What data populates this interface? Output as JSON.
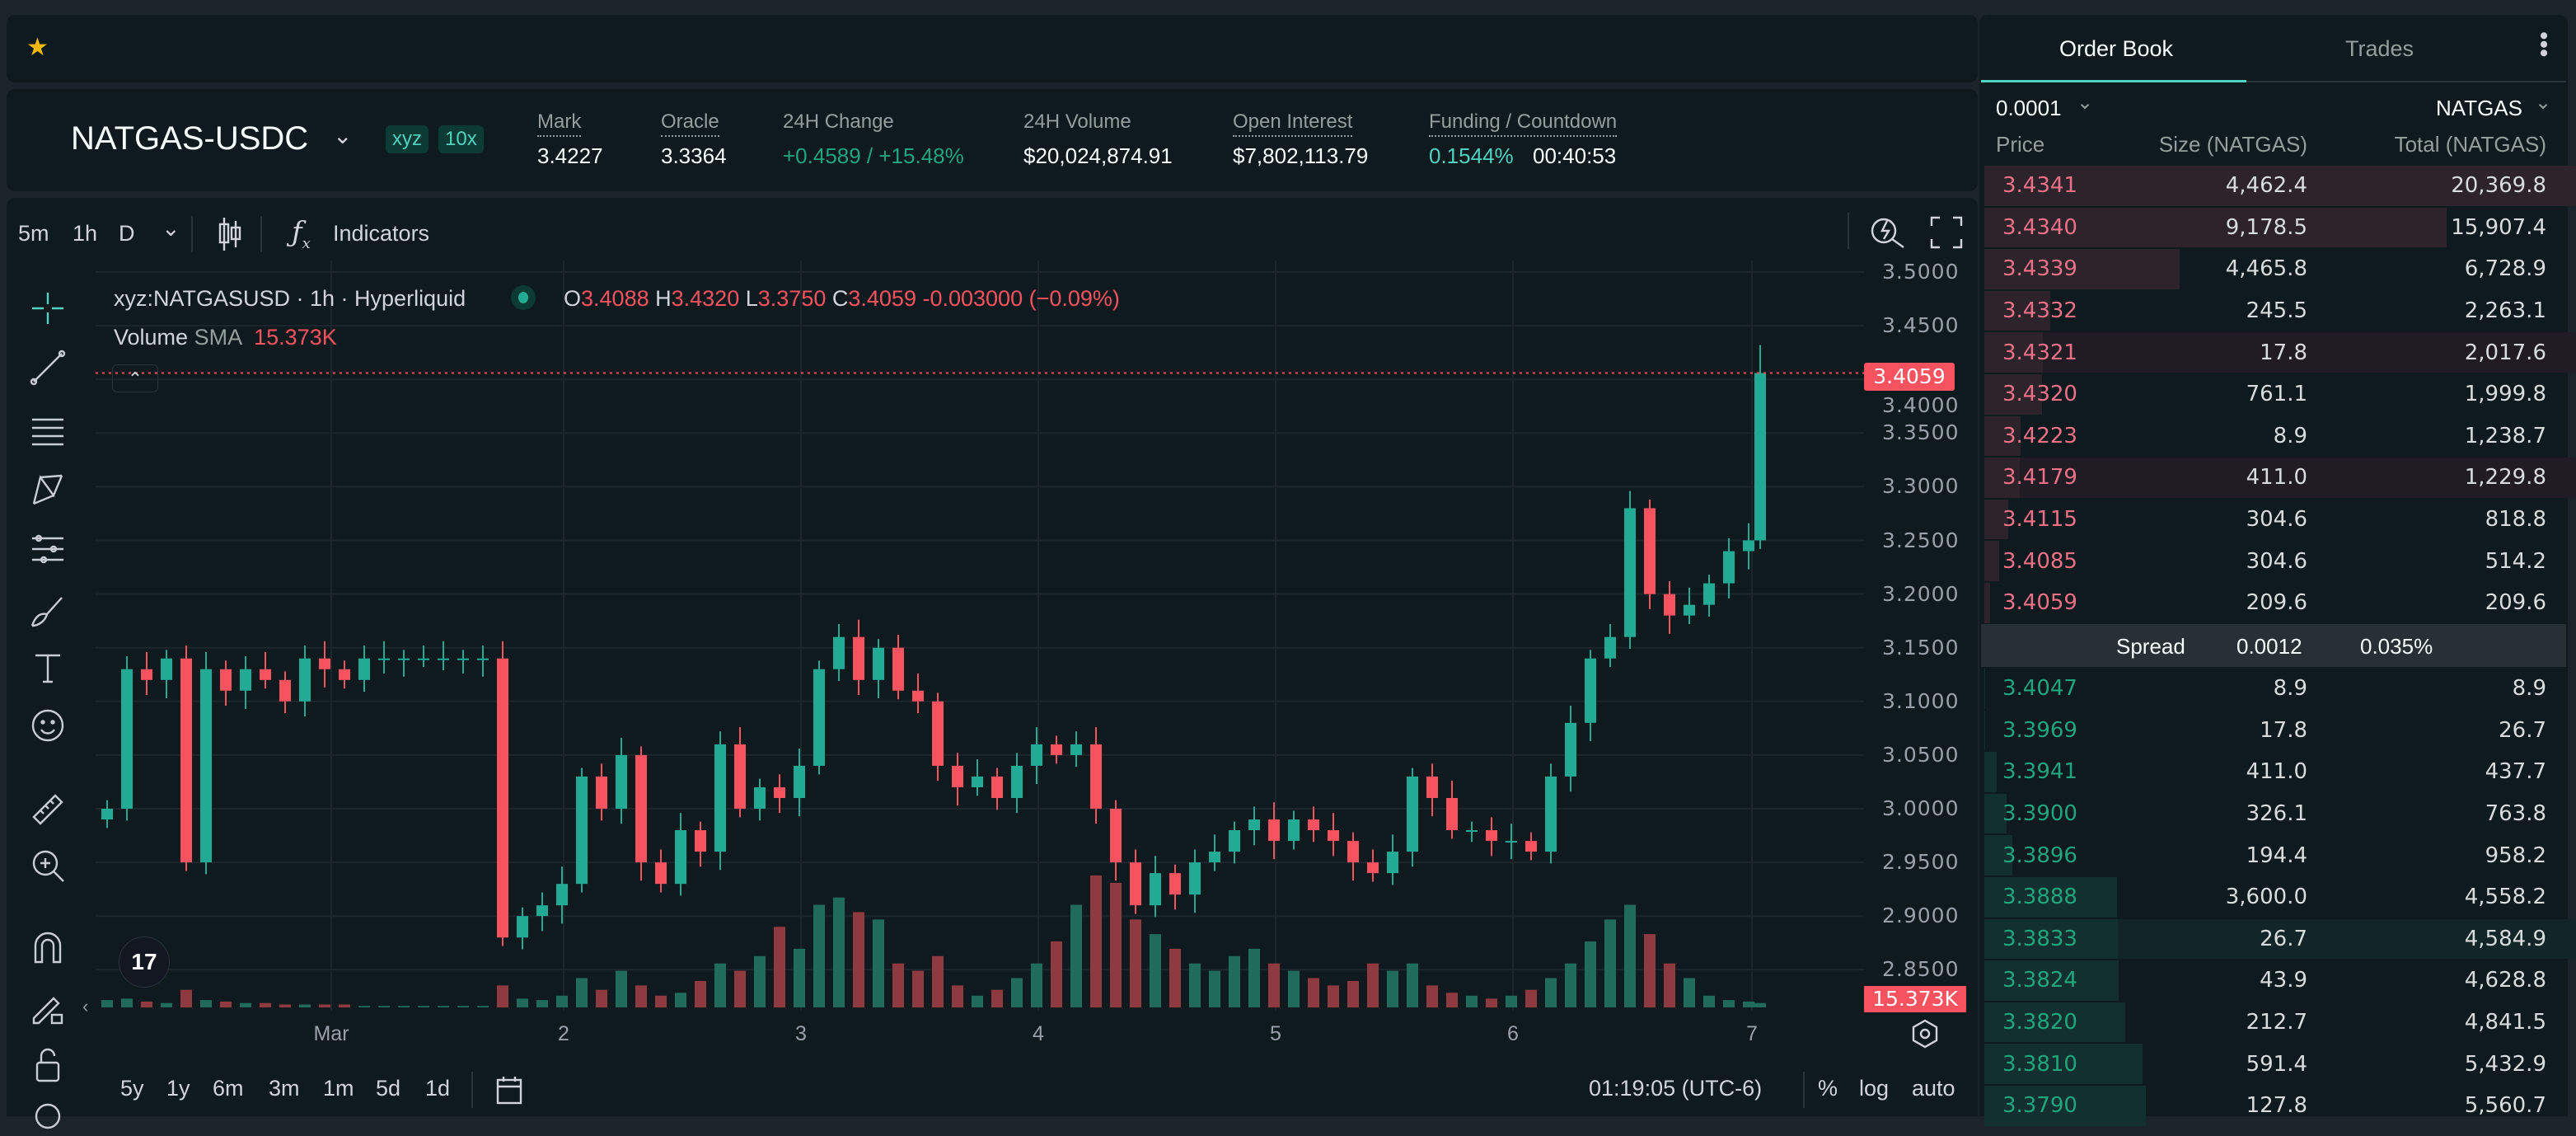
{
  "topbar": {
    "favorite_icon": "star-icon"
  },
  "market": {
    "symbol": "NATGAS-USDC",
    "badges": [
      "xyz",
      "10x"
    ],
    "stats": [
      {
        "label": "Mark",
        "value": "3.4227"
      },
      {
        "label": "Oracle",
        "value": "3.3364"
      },
      {
        "label": "24H Change",
        "value": "+0.4589 / +15.48%"
      },
      {
        "label": "24H Volume",
        "value": "$20,024,874.91"
      },
      {
        "label": "Open Interest",
        "value": "$7,802,113.79"
      },
      {
        "label": "Funding / Countdown",
        "value": "0.1544%",
        "countdown": "00:40:53"
      }
    ]
  },
  "chart_toolbar": {
    "intervals": [
      "5m",
      "1h",
      "D"
    ],
    "active_interval": "1h",
    "indicators_label": "Indicators"
  },
  "legend": {
    "title": "xyz:NATGASUSD · 1h · Hyperliquid",
    "o_label": "O",
    "o": "3.4088",
    "h_label": "H",
    "h": "3.4320",
    "l_label": "L",
    "l": "3.3750",
    "c_label": "C",
    "c": "3.4059",
    "change": "-0.003000 (−0.09%)",
    "volume_label": "Volume",
    "sma_label": "SMA",
    "sma_value": "15.373K"
  },
  "chart_data": {
    "type": "candlestick",
    "interval_hours": 2,
    "yticks": [
      "3.5000",
      "3.4500",
      "3.4000",
      "3.3500",
      "3.3000",
      "3.2500",
      "3.2000",
      "3.1500",
      "3.1000",
      "3.0500",
      "3.0000",
      "2.9500",
      "2.9000",
      "2.8500"
    ],
    "ytick_values": [
      3.5,
      3.45,
      3.4,
      3.35,
      3.3,
      3.25,
      3.2,
      3.15,
      3.1,
      3.05,
      3.0,
      2.95,
      2.9,
      2.85
    ],
    "xticks": [
      "Mar",
      "2",
      "3",
      "4",
      "5",
      "6",
      "7"
    ],
    "ylim": [
      2.83,
      3.52
    ],
    "current_price": "3.4059",
    "volume_sma": "15.373K",
    "start_open": 2.99,
    "closes": [
      3.0,
      3.13,
      3.12,
      3.14,
      2.95,
      3.13,
      3.11,
      3.13,
      3.12,
      3.1,
      3.14,
      3.13,
      3.12,
      3.14,
      3.14,
      3.14,
      3.14,
      3.14,
      3.14,
      3.14,
      2.88,
      2.9,
      2.91,
      2.93,
      3.03,
      3.0,
      3.05,
      2.95,
      2.93,
      2.98,
      2.96,
      3.06,
      3.0,
      3.02,
      3.01,
      3.04,
      3.13,
      3.16,
      3.12,
      3.15,
      3.11,
      3.1,
      3.04,
      3.02,
      3.03,
      3.01,
      3.04,
      3.06,
      3.05,
      3.06,
      3.0,
      2.95,
      2.91,
      2.94,
      2.92,
      2.95,
      2.96,
      2.98,
      2.99,
      2.97,
      2.99,
      2.98,
      2.97,
      2.95,
      2.94,
      2.96,
      3.03,
      3.01,
      2.98,
      2.98,
      2.97,
      2.97,
      2.96,
      3.03,
      3.08,
      3.14,
      3.16,
      3.28,
      3.2,
      3.18,
      3.19,
      3.21,
      3.24,
      3.25,
      3.4059
    ],
    "volumes_k": [
      5,
      6,
      4,
      3,
      12,
      5,
      4,
      3,
      3,
      2,
      2,
      2,
      2,
      1,
      1,
      1,
      1,
      1,
      1,
      1,
      15,
      6,
      5,
      8,
      20,
      12,
      25,
      15,
      8,
      10,
      18,
      30,
      25,
      35,
      55,
      40,
      70,
      75,
      65,
      60,
      30,
      25,
      35,
      15,
      8,
      12,
      20,
      30,
      45,
      70,
      90,
      85,
      60,
      50,
      40,
      30,
      25,
      35,
      40,
      30,
      25,
      20,
      15,
      18,
      30,
      25,
      30,
      15,
      10,
      8,
      6,
      8,
      12,
      20,
      30,
      45,
      60,
      70,
      50,
      30,
      20,
      8,
      5,
      4,
      3
    ],
    "colors": {
      "up": "#22ab94",
      "down": "#f7525f"
    }
  },
  "bottom_bar": {
    "ranges": [
      "5y",
      "1y",
      "6m",
      "3m",
      "1m",
      "5d",
      "1d"
    ],
    "time": "01:19:05 (UTC-6)",
    "percent": "%",
    "log": "log",
    "auto": "auto"
  },
  "orderbook": {
    "tabs": [
      "Order Book",
      "Trades"
    ],
    "tick_size": "0.0001",
    "unit": "NATGAS",
    "headers": [
      "Price",
      "Size (NATGAS)",
      "Total (NATGAS)"
    ],
    "max_total": 20369.8,
    "asks": [
      {
        "price": "3.4341",
        "size": "4,462.4",
        "total": "20,369.8",
        "t": 20369.8
      },
      {
        "price": "3.4340",
        "size": "9,178.5",
        "total": "15,907.4",
        "t": 15907.4
      },
      {
        "price": "3.4339",
        "size": "4,465.8",
        "total": "6,728.9",
        "t": 6728.9
      },
      {
        "price": "3.4332",
        "size": "245.5",
        "total": "2,263.1",
        "t": 2263.1
      },
      {
        "price": "3.4321",
        "size": "17.8",
        "total": "2,017.6",
        "t": 2017.6
      },
      {
        "price": "3.4320",
        "size": "761.1",
        "total": "1,999.8",
        "t": 1999.8
      },
      {
        "price": "3.4223",
        "size": "8.9",
        "total": "1,238.7",
        "t": 1238.7
      },
      {
        "price": "3.4179",
        "size": "411.0",
        "total": "1,229.8",
        "t": 1229.8
      },
      {
        "price": "3.4115",
        "size": "304.6",
        "total": "818.8",
        "t": 818.8
      },
      {
        "price": "3.4085",
        "size": "304.6",
        "total": "514.2",
        "t": 514.2
      },
      {
        "price": "3.4059",
        "size": "209.6",
        "total": "209.6",
        "t": 209.6
      }
    ],
    "spread": {
      "label": "Spread",
      "value": "0.0012",
      "percent": "0.035%"
    },
    "bids": [
      {
        "price": "3.4047",
        "size": "8.9",
        "total": "8.9",
        "t": 8.9
      },
      {
        "price": "3.3969",
        "size": "17.8",
        "total": "26.7",
        "t": 26.7
      },
      {
        "price": "3.3941",
        "size": "411.0",
        "total": "437.7",
        "t": 437.7
      },
      {
        "price": "3.3900",
        "size": "326.1",
        "total": "763.8",
        "t": 763.8
      },
      {
        "price": "3.3896",
        "size": "194.4",
        "total": "958.2",
        "t": 958.2
      },
      {
        "price": "3.3888",
        "size": "3,600.0",
        "total": "4,558.2",
        "t": 4558.2
      },
      {
        "price": "3.3833",
        "size": "26.7",
        "total": "4,584.9",
        "t": 4584.9
      },
      {
        "price": "3.3824",
        "size": "43.9",
        "total": "4,628.8",
        "t": 4628.8
      },
      {
        "price": "3.3820",
        "size": "212.7",
        "total": "4,841.5",
        "t": 4841.5
      },
      {
        "price": "3.3810",
        "size": "591.4",
        "total": "5,432.9",
        "t": 5432.9
      },
      {
        "price": "3.3790",
        "size": "127.8",
        "total": "5,560.7",
        "t": 5560.7
      }
    ]
  }
}
